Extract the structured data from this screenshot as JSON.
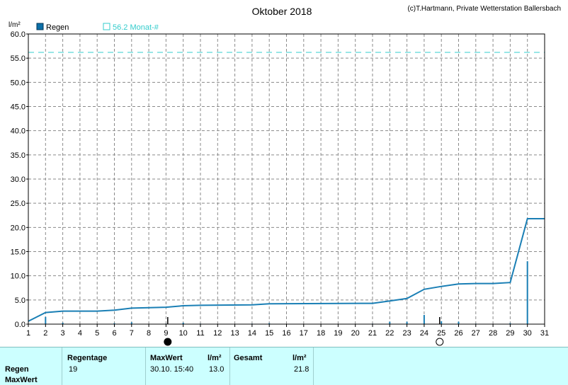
{
  "chart_data": {
    "type": "line",
    "title": "Oktober 2018",
    "credit": "(c)T.Hartmann, Private Wetterstation Ballersbach",
    "ylabel": "l/m²",
    "xlabel": "",
    "ylim": [
      0,
      60
    ],
    "xlim": [
      1,
      31
    ],
    "yticks": [
      "0.0",
      "5.0",
      "10.0",
      "15.0",
      "20.0",
      "25.0",
      "30.0",
      "35.0",
      "40.0",
      "45.0",
      "50.0",
      "55.0",
      "60.0"
    ],
    "xticks": [
      "1",
      "2",
      "3",
      "4",
      "5",
      "6",
      "7",
      "8",
      "9",
      "10",
      "11",
      "12",
      "13",
      "14",
      "15",
      "16",
      "17",
      "18",
      "19",
      "20",
      "21",
      "22",
      "23",
      "24",
      "25",
      "26",
      "27",
      "28",
      "29",
      "30",
      "31"
    ],
    "grid": true,
    "legend": [
      {
        "label": "Regen",
        "color": "#0b6fa8"
      },
      {
        "label": "56.2 Monat-#",
        "color": "#33cccc"
      }
    ],
    "reference_line": {
      "label": "56.2 Monat-#",
      "value": 56.2,
      "color": "#33cccc"
    },
    "cumulative": {
      "name": "Regen",
      "color": "#1a7fb5",
      "points": [
        [
          1,
          0.6
        ],
        [
          2,
          2.4
        ],
        [
          3,
          2.7
        ],
        [
          5,
          2.7
        ],
        [
          6,
          2.9
        ],
        [
          7,
          3.3
        ],
        [
          8,
          3.4
        ],
        [
          9,
          3.5
        ],
        [
          10,
          3.8
        ],
        [
          11,
          3.9
        ],
        [
          14,
          4.0
        ],
        [
          15,
          4.2
        ],
        [
          21,
          4.3
        ],
        [
          22,
          4.8
        ],
        [
          23,
          5.3
        ],
        [
          24,
          7.2
        ],
        [
          25,
          7.8
        ],
        [
          26,
          8.3
        ],
        [
          27,
          8.4
        ],
        [
          28,
          8.4
        ],
        [
          29,
          8.6
        ],
        [
          30,
          21.8
        ],
        [
          31,
          21.8
        ]
      ]
    },
    "daily_bars": {
      "color": "#1a7fb5",
      "points": [
        [
          2,
          1.5
        ],
        [
          3,
          0.3
        ],
        [
          6,
          0.2
        ],
        [
          7,
          0.4
        ],
        [
          9,
          0.1
        ],
        [
          10,
          0.3
        ],
        [
          11,
          0.1
        ],
        [
          14,
          0.1
        ],
        [
          15,
          0.2
        ],
        [
          21,
          0.1
        ],
        [
          22,
          0.5
        ],
        [
          23,
          0.5
        ],
        [
          24,
          1.9
        ],
        [
          25,
          0.6
        ],
        [
          26,
          0.5
        ],
        [
          27,
          0.1
        ],
        [
          29,
          0.2
        ],
        [
          30,
          13.0
        ]
      ]
    },
    "moon_phases": [
      {
        "day": 9.1,
        "phase": "new-moon"
      },
      {
        "day": 24.9,
        "phase": "full-moon"
      }
    ]
  },
  "summary": {
    "row_labels": [
      "Regen",
      "MaxWert"
    ],
    "regentage_header": "Regentage",
    "regentage_value": "19",
    "maxwert_header": "MaxWert",
    "maxwert_unit": "l/m²",
    "maxwert_datetime": "30.10.  15:40",
    "maxwert_value": "13.0",
    "gesamt_header": "Gesamt",
    "gesamt_unit": "l/m²",
    "gesamt_value": "21.8"
  }
}
